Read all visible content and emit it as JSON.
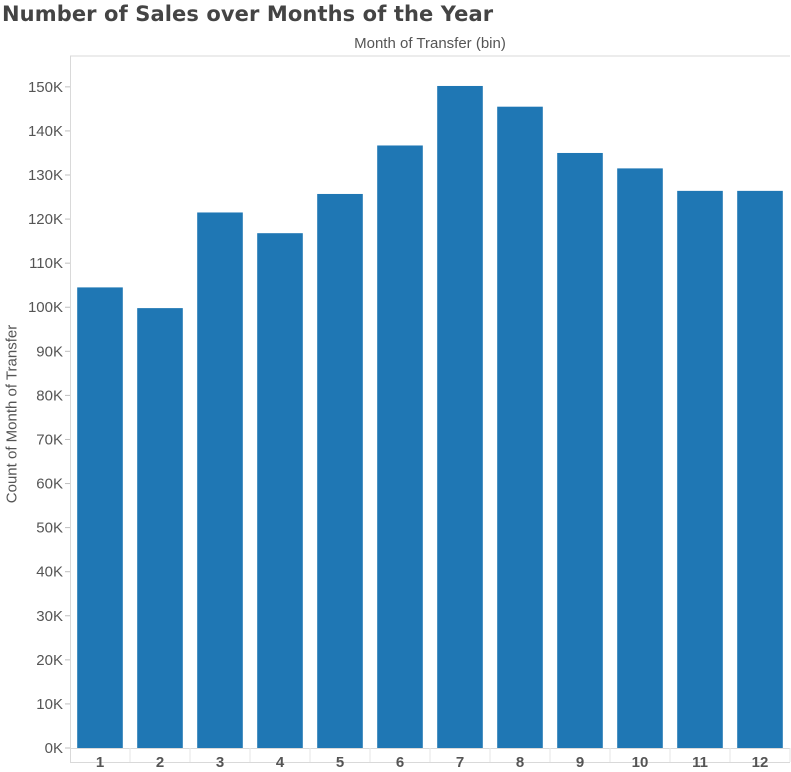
{
  "chart_data": {
    "type": "bar",
    "title": "Number of Sales over Months of the Year",
    "xlabel": "Month of Transfer (bin)",
    "ylabel": "Count of Month of Transfer",
    "categories": [
      "1",
      "2",
      "3",
      "4",
      "5",
      "6",
      "7",
      "8",
      "9",
      "10",
      "11",
      "12"
    ],
    "values": [
      104500,
      99800,
      121500,
      116800,
      125700,
      136700,
      150200,
      145500,
      135000,
      131500,
      126400,
      126400
    ],
    "ylim": [
      0,
      157000
    ],
    "yticks": [
      0,
      10000,
      20000,
      30000,
      40000,
      50000,
      60000,
      70000,
      80000,
      90000,
      100000,
      110000,
      120000,
      130000,
      140000,
      150000
    ],
    "ytick_labels": [
      "0K",
      "10K",
      "20K",
      "30K",
      "40K",
      "50K",
      "60K",
      "70K",
      "80K",
      "90K",
      "100K",
      "110K",
      "120K",
      "130K",
      "140K",
      "150K"
    ],
    "bar_color": "#1f77b4",
    "grid": false
  }
}
